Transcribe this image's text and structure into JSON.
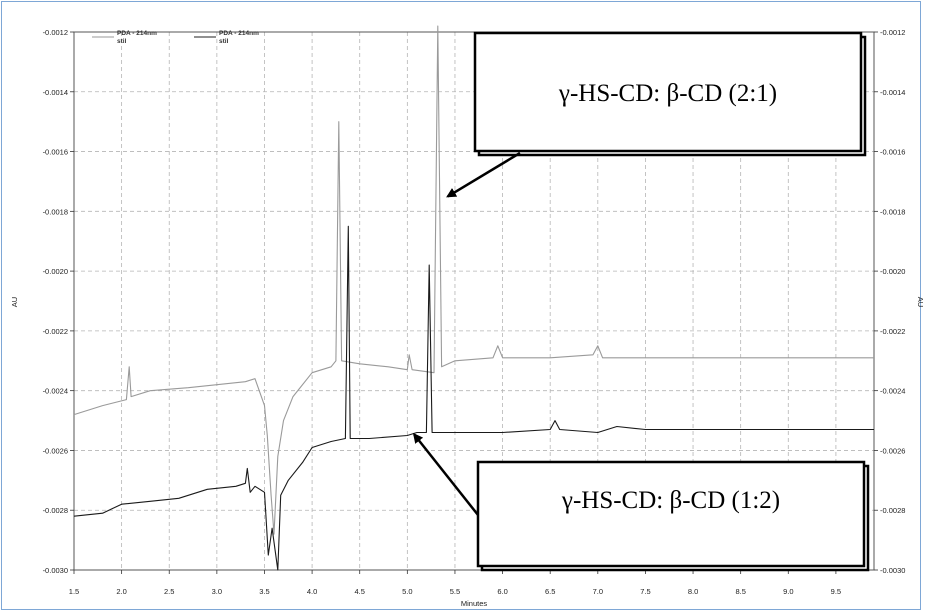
{
  "chart_data": {
    "type": "line",
    "xlabel": "Minutes",
    "ylabel": "AU",
    "ylabel_right": "AU",
    "xlim": [
      1.5,
      9.9
    ],
    "ylim": [
      -0.003,
      -0.0012
    ],
    "x_ticks": [
      "1.5",
      "2.0",
      "2.5",
      "3.0",
      "3.5",
      "4.0",
      "4.5",
      "5.0",
      "5.5",
      "6.0",
      "6.5",
      "7.0",
      "7.5",
      "8.0",
      "8.5",
      "9.0",
      "9.5"
    ],
    "y_ticks": [
      "-0.0012",
      "-0.0014",
      "-0.0016",
      "-0.0018",
      "-0.0020",
      "-0.0022",
      "-0.0024",
      "-0.0026",
      "-0.0028",
      "-0.0030"
    ],
    "grid": true,
    "legend": {
      "placement": "top-left",
      "entries": [
        {
          "line1": "PDA - 214nm",
          "line2": "stil",
          "color": "#9a9a9a"
        },
        {
          "line1": "PDA - 214nm",
          "line2": "stil",
          "color": "#222222"
        }
      ]
    },
    "series": [
      {
        "color": "#9a9a9a",
        "points": [
          [
            1.5,
            -0.00248
          ],
          [
            1.8,
            -0.00245
          ],
          [
            2.05,
            -0.00243
          ],
          [
            2.08,
            -0.00232
          ],
          [
            2.1,
            -0.00242
          ],
          [
            2.3,
            -0.0024
          ],
          [
            2.7,
            -0.00239
          ],
          [
            3.0,
            -0.00238
          ],
          [
            3.3,
            -0.00237
          ],
          [
            3.4,
            -0.00236
          ],
          [
            3.5,
            -0.00245
          ],
          [
            3.53,
            -0.00255
          ],
          [
            3.57,
            -0.00275
          ],
          [
            3.6,
            -0.00288
          ],
          [
            3.64,
            -0.00262
          ],
          [
            3.7,
            -0.0025
          ],
          [
            3.8,
            -0.00242
          ],
          [
            4.0,
            -0.00234
          ],
          [
            4.2,
            -0.00232
          ],
          [
            4.25,
            -0.0023
          ],
          [
            4.28,
            -0.0015
          ],
          [
            4.31,
            -0.0023
          ],
          [
            4.5,
            -0.00231
          ],
          [
            4.8,
            -0.00232
          ],
          [
            5.0,
            -0.00233
          ],
          [
            5.02,
            -0.00228
          ],
          [
            5.05,
            -0.00233
          ],
          [
            5.28,
            -0.00234
          ],
          [
            5.32,
            -0.00118
          ],
          [
            5.36,
            -0.00232
          ],
          [
            5.5,
            -0.0023
          ],
          [
            5.9,
            -0.00229
          ],
          [
            5.95,
            -0.00225
          ],
          [
            6.0,
            -0.00229
          ],
          [
            6.5,
            -0.00229
          ],
          [
            6.95,
            -0.00228
          ],
          [
            7.0,
            -0.00225
          ],
          [
            7.05,
            -0.00229
          ],
          [
            8.0,
            -0.00229
          ],
          [
            9.0,
            -0.00229
          ],
          [
            9.9,
            -0.00229
          ]
        ]
      },
      {
        "color": "#1a1a1a",
        "points": [
          [
            1.5,
            -0.00282
          ],
          [
            1.8,
            -0.00281
          ],
          [
            2.0,
            -0.00278
          ],
          [
            2.3,
            -0.00277
          ],
          [
            2.6,
            -0.00276
          ],
          [
            2.9,
            -0.00273
          ],
          [
            3.2,
            -0.00272
          ],
          [
            3.3,
            -0.00271
          ],
          [
            3.32,
            -0.00266
          ],
          [
            3.35,
            -0.00274
          ],
          [
            3.4,
            -0.00272
          ],
          [
            3.5,
            -0.00274
          ],
          [
            3.54,
            -0.00295
          ],
          [
            3.58,
            -0.00286
          ],
          [
            3.64,
            -0.003
          ],
          [
            3.67,
            -0.00275
          ],
          [
            3.75,
            -0.0027
          ],
          [
            3.9,
            -0.00264
          ],
          [
            4.0,
            -0.00259
          ],
          [
            4.2,
            -0.00257
          ],
          [
            4.35,
            -0.00256
          ],
          [
            4.38,
            -0.00185
          ],
          [
            4.4,
            -0.00256
          ],
          [
            4.6,
            -0.00256
          ],
          [
            5.0,
            -0.00255
          ],
          [
            5.1,
            -0.00254
          ],
          [
            5.2,
            -0.00254
          ],
          [
            5.23,
            -0.00198
          ],
          [
            5.26,
            -0.00254
          ],
          [
            5.5,
            -0.00254
          ],
          [
            6.0,
            -0.00254
          ],
          [
            6.5,
            -0.00253
          ],
          [
            6.55,
            -0.0025
          ],
          [
            6.6,
            -0.00253
          ],
          [
            7.0,
            -0.00254
          ],
          [
            7.2,
            -0.00252
          ],
          [
            7.5,
            -0.00253
          ],
          [
            8.0,
            -0.00253
          ],
          [
            9.0,
            -0.00253
          ],
          [
            9.9,
            -0.00253
          ]
        ]
      }
    ],
    "annotations": [
      {
        "text": "γ-HS-CD: β-CD (2:1)",
        "target_x": 5.32,
        "target_y": -0.00175
      },
      {
        "text": "γ-HS-CD: β-CD (1:2)",
        "target_x": 5.03,
        "target_y": -0.00256
      }
    ]
  }
}
